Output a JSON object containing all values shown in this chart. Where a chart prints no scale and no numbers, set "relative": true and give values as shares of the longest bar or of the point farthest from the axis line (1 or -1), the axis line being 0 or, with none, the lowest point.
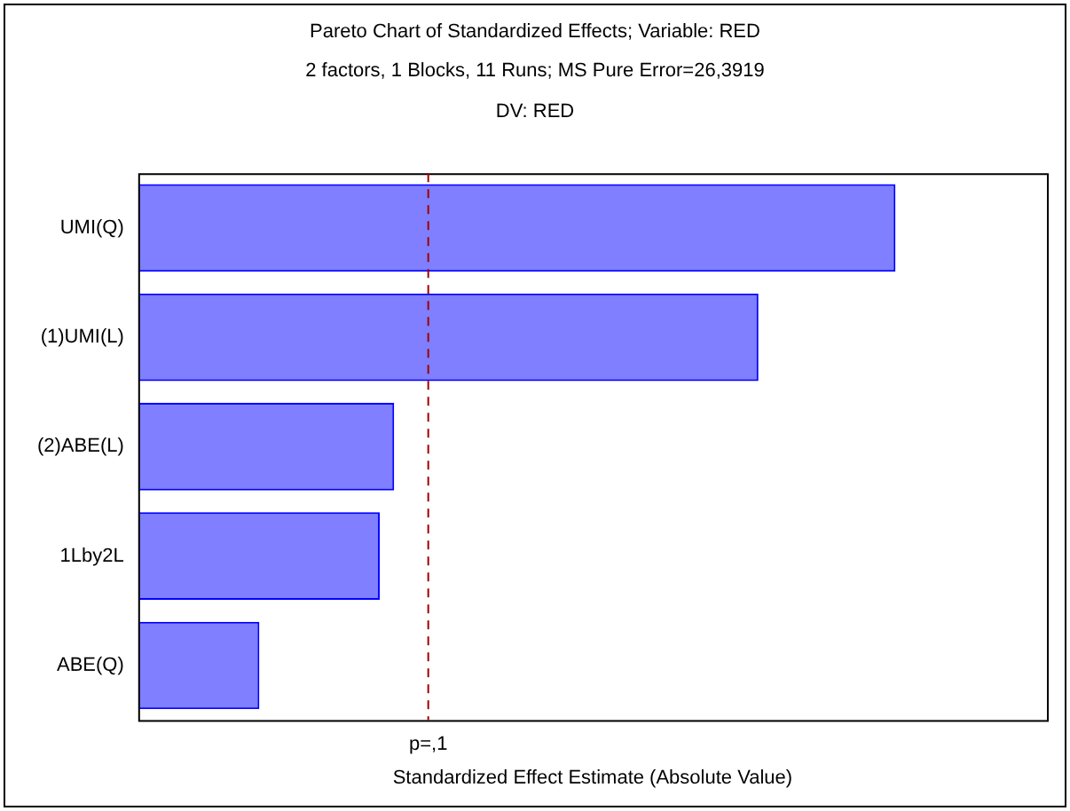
{
  "chart_data": {
    "type": "bar",
    "orientation": "horizontal",
    "relative": true,
    "title": "Pareto Chart of Standardized Effects; Variable: RED",
    "subtitle": "2 factors, 1 Blocks, 11 Runs; MS Pure Error=26,3919",
    "annotations": [
      "DV: RED"
    ],
    "xlabel": "Standardized Effect Estimate (Absolute Value)",
    "categories": [
      "UMI(Q)",
      "(1)UMI(L)",
      "(2)ABE(L)",
      "1Lby2L",
      "ABE(Q)"
    ],
    "values": [
      1,
      0.819,
      0.338,
      0.319,
      0.16
    ],
    "color": "#0000ff",
    "ref_lines": [
      {
        "axis": "x",
        "value": 0.383,
        "label": "p=,1",
        "color": "#a00000",
        "line_style": "dashed"
      }
    ],
    "grid": false,
    "legend": false
  }
}
